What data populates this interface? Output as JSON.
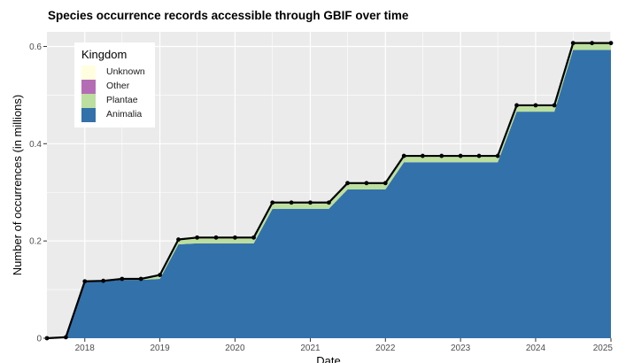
{
  "chart_data": {
    "type": "area",
    "stacked": true,
    "title": "Species occurrence records accessible through GBIF over time",
    "xlabel": "Date",
    "ylabel": "Number of occurrences (in millions)",
    "xlim": [
      "2017-07-01",
      "2025-01-01"
    ],
    "ylim": [
      0,
      0.63
    ],
    "x_ticks": [
      "2018",
      "2019",
      "2020",
      "2021",
      "2022",
      "2023",
      "2024",
      "2025"
    ],
    "y_ticks": [
      "0",
      "0.2",
      "0.4",
      "0.6"
    ],
    "grid": true,
    "legend": {
      "title": "Kingdom",
      "position": "top-left",
      "entries": [
        "Unknown",
        "Other",
        "Plantae",
        "Animalia"
      ]
    },
    "colors": {
      "Unknown": "#ffffe0",
      "Other": "#b46db5",
      "Plantae": "#bcdf9f",
      "Animalia": "#3371ab",
      "total_line": "#000000",
      "panel_background": "#ebebeb",
      "grid": "#ffffff"
    },
    "x": [
      "2017-07-01",
      "2017-10-01",
      "2018-01-01",
      "2018-04-01",
      "2018-07-01",
      "2018-10-01",
      "2019-01-01",
      "2019-04-01",
      "2019-07-01",
      "2019-10-01",
      "2020-01-01",
      "2020-04-01",
      "2020-07-01",
      "2020-10-01",
      "2021-01-01",
      "2021-04-01",
      "2021-07-01",
      "2021-10-01",
      "2022-01-01",
      "2022-04-01",
      "2022-07-01",
      "2022-10-01",
      "2023-01-01",
      "2023-04-01",
      "2023-07-01",
      "2023-10-01",
      "2024-01-01",
      "2024-04-01",
      "2024-07-01",
      "2024-10-01",
      "2025-01-01"
    ],
    "series": [
      {
        "name": "Animalia",
        "values": [
          0.0,
          0.002,
          0.116,
          0.117,
          0.12,
          0.12,
          0.122,
          0.193,
          0.195,
          0.195,
          0.195,
          0.195,
          0.266,
          0.266,
          0.266,
          0.266,
          0.306,
          0.306,
          0.306,
          0.362,
          0.362,
          0.362,
          0.362,
          0.362,
          0.362,
          0.466,
          0.466,
          0.466,
          0.593,
          0.593,
          0.593
        ]
      },
      {
        "name": "Plantae",
        "values": [
          0.0,
          0.0,
          0.001,
          0.001,
          0.002,
          0.002,
          0.008,
          0.01,
          0.012,
          0.012,
          0.012,
          0.012,
          0.013,
          0.013,
          0.013,
          0.013,
          0.013,
          0.013,
          0.013,
          0.013,
          0.013,
          0.013,
          0.013,
          0.013,
          0.013,
          0.013,
          0.013,
          0.013,
          0.014,
          0.014,
          0.014
        ]
      },
      {
        "name": "Other",
        "values": [
          0.0,
          0.0,
          0.0,
          0.0,
          0.0,
          0.0,
          0.0,
          0.0,
          0.0,
          0.0,
          0.0,
          0.0,
          0.0,
          0.0,
          0.0,
          0.0,
          0.0,
          0.0,
          0.0,
          0.0,
          0.0,
          0.0,
          0.0,
          0.0,
          0.0,
          0.0,
          0.0,
          0.0,
          0.0,
          0.0,
          0.0
        ]
      },
      {
        "name": "Unknown",
        "values": [
          0.0,
          0.0,
          0.0,
          0.0,
          0.0,
          0.0,
          0.0,
          0.0,
          0.0,
          0.0,
          0.0,
          0.0,
          0.0,
          0.0,
          0.0,
          0.0,
          0.0,
          0.0,
          0.0,
          0.0,
          0.0,
          0.0,
          0.0,
          0.0,
          0.0,
          0.0,
          0.0,
          0.0,
          0.0,
          0.0,
          0.0
        ]
      }
    ],
    "total": [
      0.0,
      0.002,
      0.117,
      0.118,
      0.122,
      0.122,
      0.13,
      0.203,
      0.207,
      0.207,
      0.207,
      0.207,
      0.279,
      0.279,
      0.279,
      0.279,
      0.319,
      0.319,
      0.319,
      0.375,
      0.375,
      0.375,
      0.375,
      0.375,
      0.375,
      0.479,
      0.479,
      0.479,
      0.607,
      0.607,
      0.607
    ]
  }
}
